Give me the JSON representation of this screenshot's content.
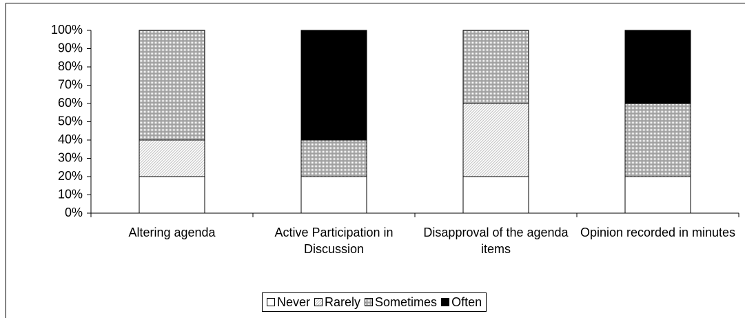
{
  "chart_data": {
    "type": "stacked_bar",
    "categories": [
      "Altering agenda",
      "Active Participation in Discussion",
      "Disapproval of the agenda items",
      "Opinion recorded in minutes"
    ],
    "series": [
      {
        "name": "Never",
        "color": "#ffffff",
        "values": [
          20,
          20,
          20,
          20
        ]
      },
      {
        "name": "Rarely",
        "color": "#c8c8c8",
        "values": [
          20,
          0,
          40,
          0
        ]
      },
      {
        "name": "Sometimes",
        "color": "#a0a0a0",
        "values": [
          60,
          20,
          40,
          40
        ]
      },
      {
        "name": "Often",
        "color": "#000000",
        "values": [
          0,
          60,
          0,
          40
        ]
      }
    ],
    "ylim": [
      0,
      100
    ],
    "yticks": [
      {
        "value": 0,
        "label": "0%"
      },
      {
        "value": 10,
        "label": "10%"
      },
      {
        "value": 20,
        "label": "20%"
      },
      {
        "value": 30,
        "label": "30%"
      },
      {
        "value": 40,
        "label": "40%"
      },
      {
        "value": 50,
        "label": "50%"
      },
      {
        "value": 60,
        "label": "60%"
      },
      {
        "value": 70,
        "label": "70%"
      },
      {
        "value": 80,
        "label": "80%"
      },
      {
        "value": 90,
        "label": "90%"
      },
      {
        "value": 100,
        "label": "100%"
      }
    ],
    "legend": "bottom"
  }
}
